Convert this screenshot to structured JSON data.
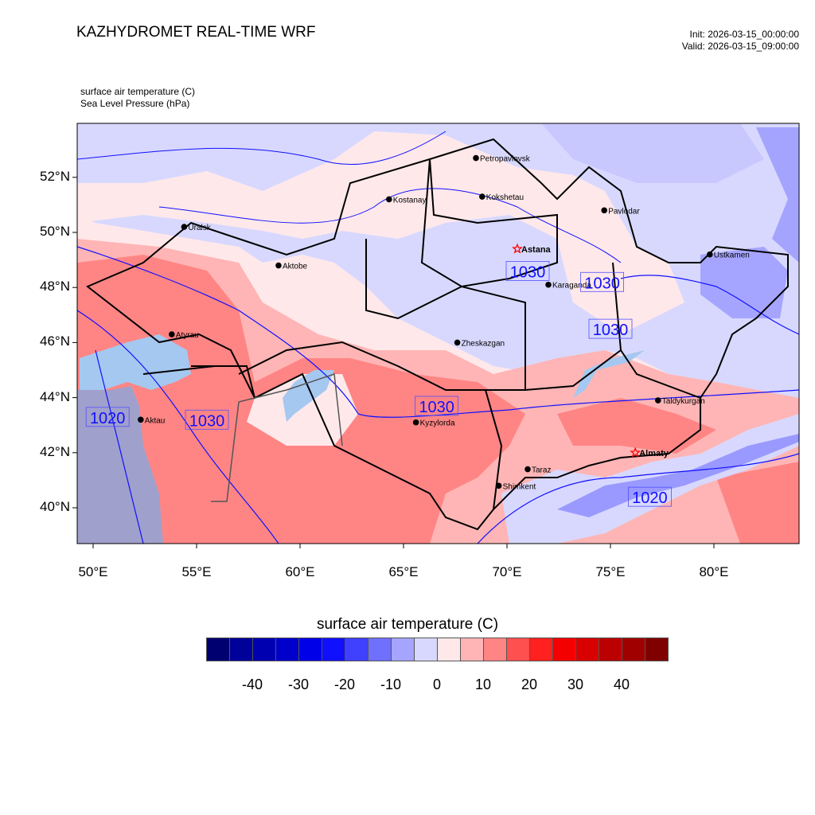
{
  "header": {
    "title": "KAZHYDROMET REAL-TIME WRF",
    "init": "Init: 2026-03-15_00:00:00",
    "valid": "Valid: 2026-03-15_09:00:00"
  },
  "subtitles": {
    "field1": "surface air temperature   (C)",
    "field2": "Sea Level Pressure   (hPa)"
  },
  "axes": {
    "lat_labels": [
      {
        "lat": 52,
        "text": "52°N"
      },
      {
        "lat": 50,
        "text": "50°N"
      },
      {
        "lat": 48,
        "text": "48°N"
      },
      {
        "lat": 46,
        "text": "46°N"
      },
      {
        "lat": 44,
        "text": "44°N"
      },
      {
        "lat": 42,
        "text": "42°N"
      },
      {
        "lat": 40,
        "text": "40°N"
      }
    ],
    "lon_labels": [
      {
        "lon": 50,
        "text": "50°E"
      },
      {
        "lon": 55,
        "text": "55°E"
      },
      {
        "lon": 60,
        "text": "60°E"
      },
      {
        "lon": 65,
        "text": "65°E"
      },
      {
        "lon": 70,
        "text": "70°E"
      },
      {
        "lon": 75,
        "text": "75°E"
      },
      {
        "lon": 80,
        "text": "80°E"
      }
    ]
  },
  "cities": [
    {
      "name": "Petropavlovsk",
      "lon": 68.5,
      "lat": 52.7,
      "capital": false
    },
    {
      "name": "Kokshetau",
      "lon": 68.8,
      "lat": 51.3,
      "capital": false
    },
    {
      "name": "Kostanay",
      "lon": 64.3,
      "lat": 51.2,
      "capital": false
    },
    {
      "name": "Pavlodar",
      "lon": 74.7,
      "lat": 50.8,
      "capital": false
    },
    {
      "name": "Uralsk",
      "lon": 54.4,
      "lat": 50.2,
      "capital": false
    },
    {
      "name": "Aktobe",
      "lon": 58.96,
      "lat": 48.8,
      "capital": false
    },
    {
      "name": "Astana",
      "lon": 70.5,
      "lat": 49.4,
      "capital": true
    },
    {
      "name": "Ustkamen",
      "lon": 79.8,
      "lat": 49.2,
      "capital": false
    },
    {
      "name": "Karaganda",
      "lon": 72.0,
      "lat": 48.1,
      "capital": false
    },
    {
      "name": "Atyrau",
      "lon": 53.8,
      "lat": 46.3,
      "capital": false
    },
    {
      "name": "Zheskazgan",
      "lon": 67.6,
      "lat": 46.0,
      "capital": false
    },
    {
      "name": "Taldykurgan",
      "lon": 77.3,
      "lat": 43.9,
      "capital": false
    },
    {
      "name": "Kyzylorda",
      "lon": 65.6,
      "lat": 43.1,
      "capital": false
    },
    {
      "name": "Aktau",
      "lon": 52.3,
      "lat": 43.2,
      "capital": false
    },
    {
      "name": "Almaty",
      "lon": 76.2,
      "lat": 42.0,
      "capital": true
    },
    {
      "name": "Taraz",
      "lon": 71.0,
      "lat": 41.4,
      "capital": false
    },
    {
      "name": "Shimkent",
      "lon": 69.6,
      "lat": 40.8,
      "capital": false
    }
  ],
  "contour_labels": [
    {
      "text": "1030",
      "lon": 71.0,
      "lat": 48.6
    },
    {
      "text": "1030",
      "lon": 74.6,
      "lat": 48.2
    },
    {
      "text": "1030",
      "lon": 75.0,
      "lat": 46.5
    },
    {
      "text": "1030",
      "lon": 66.6,
      "lat": 43.7
    },
    {
      "text": "1030",
      "lon": 55.5,
      "lat": 43.2
    },
    {
      "text": "1020",
      "lon": 50.7,
      "lat": 43.3
    },
    {
      "text": "1020",
      "lon": 76.9,
      "lat": 40.4
    }
  ],
  "colorbar": {
    "title": "surface air temperature  (C)",
    "colors": [
      "#000070",
      "#00009A",
      "#0000B0",
      "#0000CC",
      "#0000E8",
      "#1010FF",
      "#4040FF",
      "#7070FF",
      "#A5A5FF",
      "#D8D8FF",
      "#FFE8EA",
      "#FFB5B5",
      "#FF8585",
      "#FF5050",
      "#FF2020",
      "#F50000",
      "#D80000",
      "#BA0000",
      "#A00000",
      "#800000"
    ],
    "labels": [
      "-40",
      "-30",
      "-20",
      "-10",
      "0",
      "10",
      "20",
      "30",
      "40"
    ],
    "values": [
      -40,
      -30,
      -20,
      -10,
      0,
      10,
      20,
      30,
      40
    ]
  }
}
